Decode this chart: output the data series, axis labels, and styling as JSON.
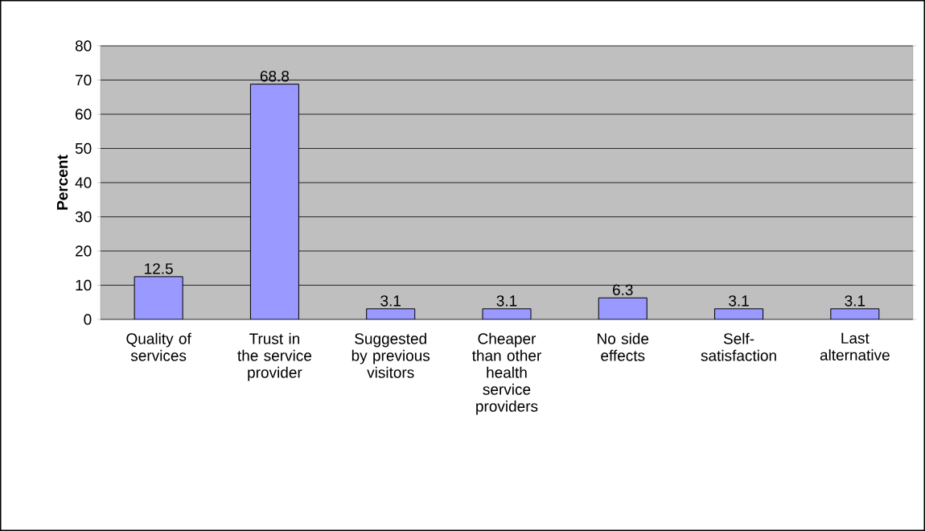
{
  "chart_data": {
    "type": "bar",
    "ylabel": "Percent",
    "categories": [
      "Quality of services",
      "Trust in the service provider",
      "Suggested by previous visitors",
      "Cheaper than other health service providers",
      "No side effects",
      "Self-satisfaction",
      "Last alternative"
    ],
    "values": [
      12.5,
      68.8,
      3.1,
      3.1,
      6.3,
      3.1,
      3.1
    ],
    "color": "#9999ff",
    "ylim": [
      0,
      80
    ],
    "yticks": [
      0,
      10,
      20,
      30,
      40,
      50,
      60,
      70,
      80
    ],
    "grid": "y",
    "data_labels": true
  }
}
